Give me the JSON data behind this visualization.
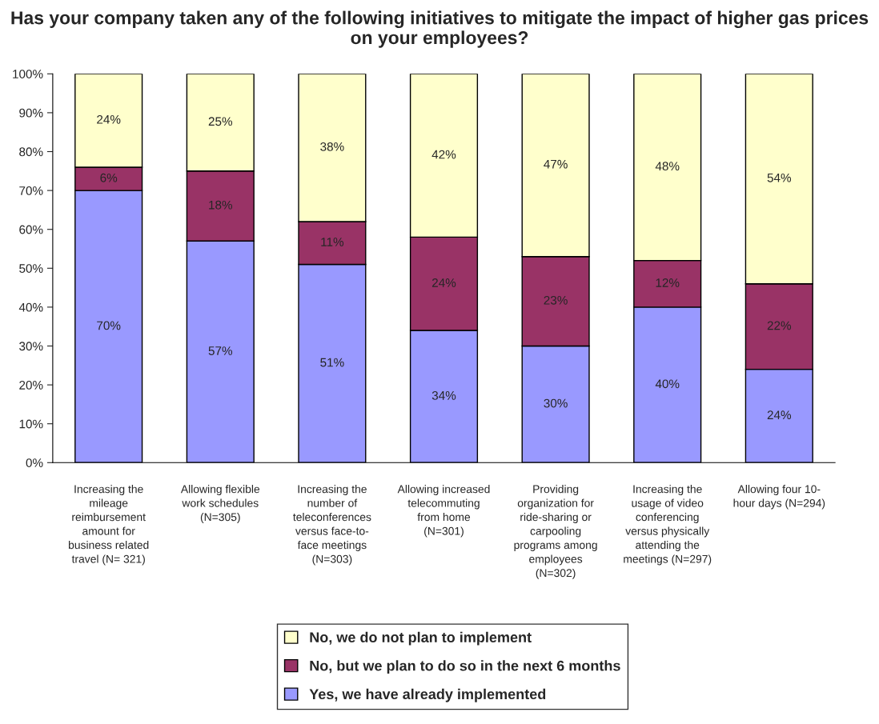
{
  "chart_data": {
    "type": "bar",
    "stacked": true,
    "title": "Has your company taken any of the following initiatives to mitigate the impact of higher gas prices on your employees?",
    "categories": [
      "Increasing the\nmileage\nreimbursement\namount for\nbusiness related\ntravel (N= 321)",
      "Allowing flexible\nwork schedules\n(N=305)",
      "Increasing the\nnumber of\nteleconferences\nversus face-to-\nface meetings\n(N=303)",
      "Allowing increased\ntelecommuting\nfrom home\n(N=301)",
      "Providing\norganization for\nride-sharing or\ncarpooling\nprograms among\nemployees\n(N=302)",
      "Increasing the\nusage of video\nconferencing\nversus physically\nattending the\nmeetings (N=297)",
      "Allowing four 10-\nhour days (N=294)"
    ],
    "series": [
      {
        "name": "Yes, we have already implemented",
        "color": "#9999ff",
        "values": [
          70,
          57,
          51,
          34,
          30,
          40,
          24
        ],
        "value_labels": [
          "70%",
          "57%",
          "51%",
          "34%",
          "30%",
          "40%",
          "24%"
        ]
      },
      {
        "name": "No, but we plan to do so in the next 6 months",
        "color": "#993366",
        "values": [
          6,
          18,
          11,
          24,
          23,
          12,
          22
        ],
        "value_labels": [
          "6%",
          "18%",
          "11%",
          "24%",
          "23%",
          "12%",
          "22%"
        ]
      },
      {
        "name": "No, we do not plan to implement",
        "color": "#ffffcc",
        "values": [
          24,
          25,
          38,
          42,
          47,
          48,
          54
        ],
        "value_labels": [
          "24%",
          "25%",
          "38%",
          "42%",
          "47%",
          "48%",
          "54%"
        ]
      }
    ],
    "ylim": [
      0,
      100
    ],
    "yticks": [
      {
        "value": 0,
        "label": "0%"
      },
      {
        "value": 10,
        "label": "10%"
      },
      {
        "value": 20,
        "label": "20%"
      },
      {
        "value": 30,
        "label": "30%"
      },
      {
        "value": 40,
        "label": "40%"
      },
      {
        "value": 50,
        "label": "50%"
      },
      {
        "value": 60,
        "label": "60%"
      },
      {
        "value": 70,
        "label": "70%"
      },
      {
        "value": 80,
        "label": "80%"
      },
      {
        "value": 90,
        "label": "90%"
      },
      {
        "value": 100,
        "label": "100%"
      }
    ],
    "grid": false,
    "legend": "bottom"
  }
}
